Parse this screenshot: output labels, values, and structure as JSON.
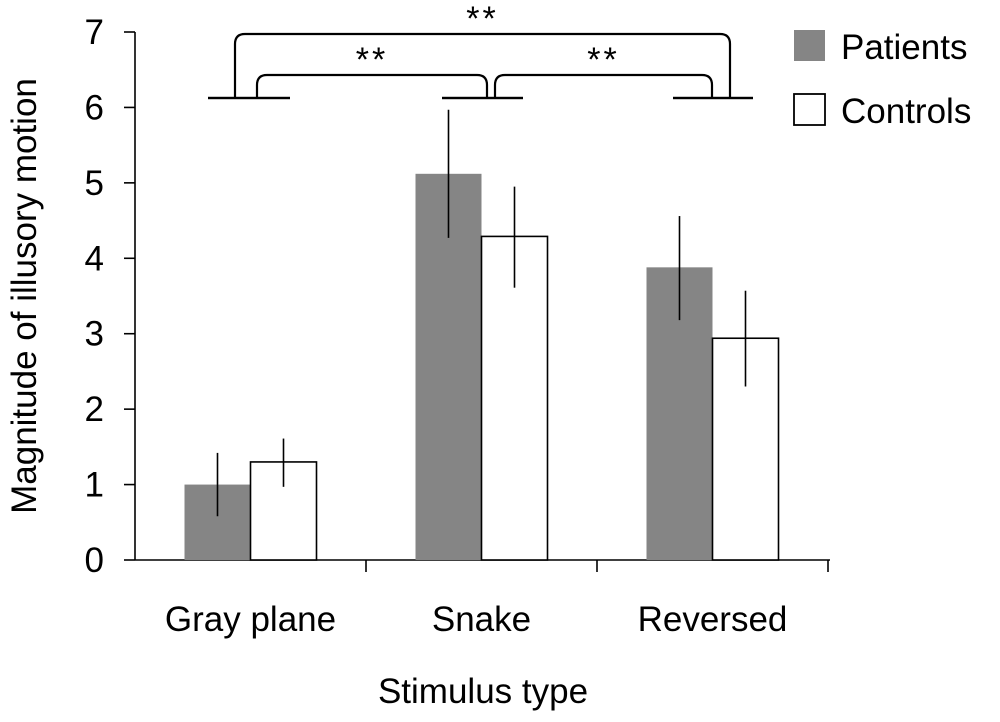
{
  "chart_data": {
    "type": "bar",
    "title": "",
    "xlabel": "Stimulus type",
    "ylabel": "Magnitude of illusory motion",
    "categories": [
      "Gray plane",
      "Snake",
      "Reversed"
    ],
    "ylim": [
      0,
      7
    ],
    "yticks": [
      "0",
      "1",
      "2",
      "3",
      "4",
      "5",
      "6",
      "7"
    ],
    "grid": false,
    "legend_position": "top-right",
    "series": [
      {
        "name": "Patients",
        "color": "#858585",
        "values": [
          1.0,
          5.12,
          3.88
        ],
        "error_low": [
          0.58,
          4.27,
          3.18
        ],
        "error_high": [
          1.42,
          5.97,
          4.56
        ]
      },
      {
        "name": "Controls",
        "color": "#ffffff",
        "values": [
          1.3,
          4.29,
          2.94
        ],
        "error_low": [
          0.97,
          3.61,
          2.3
        ],
        "error_high": [
          1.61,
          4.95,
          3.57
        ]
      }
    ],
    "significance": [
      {
        "label": "**",
        "between": [
          "Gray plane",
          "Snake"
        ]
      },
      {
        "label": "**",
        "between": [
          "Snake",
          "Reversed"
        ]
      },
      {
        "label": "**",
        "between": [
          "Gray plane",
          "Reversed"
        ]
      }
    ]
  }
}
